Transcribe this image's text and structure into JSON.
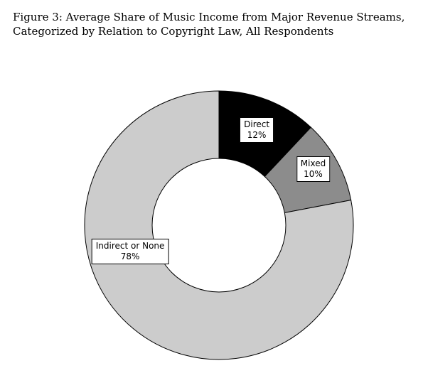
{
  "figure": {
    "title": "Figure 3: Average Share of Music Income from Major Revenue Streams, Categorized by Relation to Copyright Law, All Respondents"
  },
  "chart_data": {
    "type": "pie",
    "title": "Figure 3: Average Share of Music Income from Major Revenue Streams, Categorized by Relation to Copyright Law, All Respondents",
    "donut": true,
    "categories": [
      "Direct",
      "Mixed",
      "Indirect or None"
    ],
    "values": [
      12,
      10,
      78
    ],
    "labels": [
      "12%",
      "10%",
      "78%"
    ],
    "colors": [
      "#000000",
      "#8c8c8c",
      "#cccccc"
    ],
    "start": "12 o'clock",
    "direction": "clockwise",
    "legend": "none (labels on slices)"
  }
}
